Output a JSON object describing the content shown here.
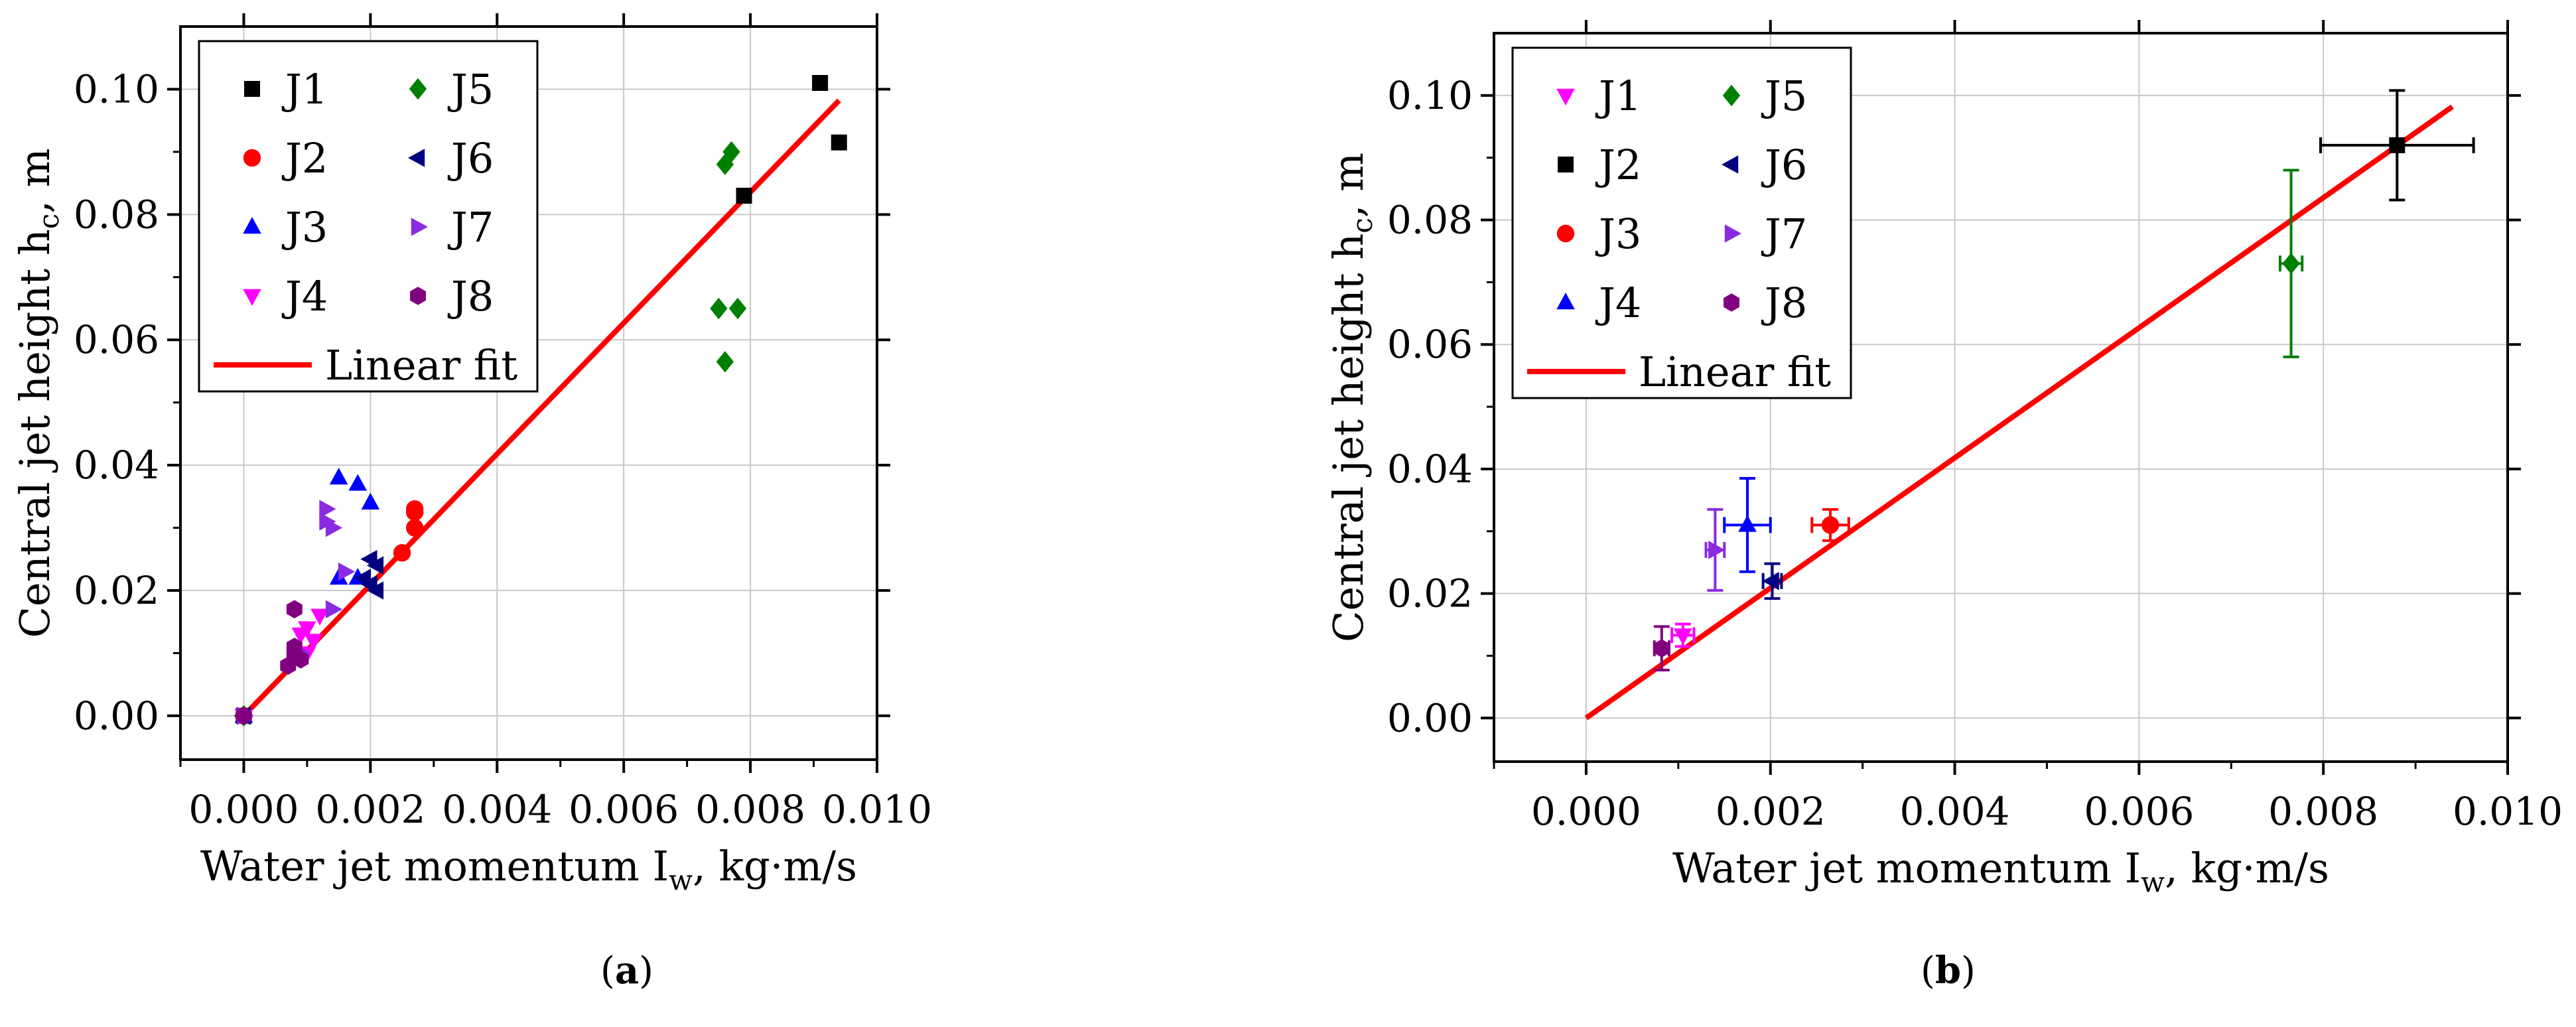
{
  "figure": {
    "captions": [
      {
        "open": "(",
        "letter": "a",
        "close": ")"
      },
      {
        "open": "(",
        "letter": "b",
        "close": ")"
      }
    ]
  },
  "colors": {
    "J1": "#000000",
    "J2": "#ff0000",
    "J3": "#0000ff",
    "J4": "#ff00ff",
    "J5": "#008000",
    "J6": "#000080",
    "J7": "#8a2be2",
    "J8": "#800080",
    "fit": "#ff0000",
    "grid": "#c8c8c8",
    "axis": "#000000"
  },
  "chart_data": [
    {
      "id": "a",
      "type": "scatter",
      "title": "",
      "xlabel_main": "Water jet momentum I",
      "xlabel_sub": "w",
      "xlabel_tail": ", kg·m/s",
      "ylabel_main": "Central jet height h",
      "ylabel_sub": "c",
      "ylabel_tail": ", m",
      "xlim": [
        -0.001,
        0.01
      ],
      "ylim": [
        -0.007,
        0.11
      ],
      "xticks": [
        0.0,
        0.002,
        0.004,
        0.006,
        0.008,
        0.01
      ],
      "yticks": [
        0.0,
        0.02,
        0.04,
        0.06,
        0.08,
        0.1
      ],
      "xtick_labels": [
        "0.000",
        "0.002",
        "0.004",
        "0.006",
        "0.008",
        "0.010"
      ],
      "ytick_labels": [
        "0.00",
        "0.02",
        "0.04",
        "0.06",
        "0.08",
        "0.10"
      ],
      "grid": true,
      "legend_position": "top-left",
      "legend_columns": [
        [
          "J1",
          "J2",
          "J3",
          "J4"
        ],
        [
          "J5",
          "J6",
          "J7",
          "J8"
        ]
      ],
      "fit": {
        "label": "Linear fit",
        "x": [
          0.0,
          0.0094
        ],
        "y": [
          0.0,
          0.0982
        ]
      },
      "series": [
        {
          "name": "J1",
          "marker": "square",
          "x": [
            0.0,
            0.0079,
            0.0091,
            0.0094
          ],
          "y": [
            0.0,
            0.083,
            0.101,
            0.0915
          ]
        },
        {
          "name": "J2",
          "marker": "circle",
          "x": [
            0.0,
            0.0025,
            0.0027,
            0.0027,
            0.0027
          ],
          "y": [
            0.0,
            0.026,
            0.033,
            0.0325,
            0.03
          ]
        },
        {
          "name": "J3",
          "marker": "triangle-up",
          "x": [
            0.0,
            0.0015,
            0.0018,
            0.002,
            0.0015,
            0.0018
          ],
          "y": [
            0.0,
            0.038,
            0.037,
            0.034,
            0.022,
            0.022
          ]
        },
        {
          "name": "J4",
          "marker": "triangle-down",
          "x": [
            0.0,
            0.0009,
            0.001,
            0.0011,
            0.0012,
            0.001
          ],
          "y": [
            0.0,
            0.013,
            0.014,
            0.012,
            0.016,
            0.01
          ]
        },
        {
          "name": "J5",
          "marker": "diamond",
          "x": [
            0.0,
            0.0076,
            0.0077,
            0.0075,
            0.0078,
            0.0076
          ],
          "y": [
            0.0,
            0.088,
            0.09,
            0.065,
            0.065,
            0.0565
          ]
        },
        {
          "name": "J6",
          "marker": "triangle-left",
          "x": [
            0.0,
            0.002,
            0.0021,
            0.0021,
            0.0019,
            0.002
          ],
          "y": [
            0.0,
            0.025,
            0.024,
            0.02,
            0.022,
            0.021
          ]
        },
        {
          "name": "J7",
          "marker": "triangle-right",
          "x": [
            0.0,
            0.0013,
            0.0013,
            0.0014,
            0.0014,
            0.0016,
            0.0009
          ],
          "y": [
            0.0,
            0.033,
            0.031,
            0.03,
            0.017,
            0.023,
            0.01
          ]
        },
        {
          "name": "J8",
          "marker": "hexagon",
          "x": [
            0.0,
            0.0008,
            0.0008,
            0.0009,
            0.0008,
            0.0007
          ],
          "y": [
            0.0,
            0.017,
            0.011,
            0.009,
            0.01,
            0.008
          ]
        }
      ]
    },
    {
      "id": "b",
      "type": "scatter",
      "title": "",
      "xlabel_main": "Water jet momentum I",
      "xlabel_sub": "w",
      "xlabel_tail": ", kg·m/s",
      "ylabel_main": "Central jet height h",
      "ylabel_sub": "c",
      "ylabel_tail": ", m",
      "xlim": [
        -0.001,
        0.01
      ],
      "ylim": [
        -0.007,
        0.11
      ],
      "xticks": [
        0.0,
        0.002,
        0.004,
        0.006,
        0.008,
        0.01
      ],
      "yticks": [
        0.0,
        0.02,
        0.04,
        0.06,
        0.08,
        0.1
      ],
      "xtick_labels": [
        "0.000",
        "0.002",
        "0.004",
        "0.006",
        "0.008",
        "0.010"
      ],
      "ytick_labels": [
        "0.00",
        "0.02",
        "0.04",
        "0.06",
        "0.08",
        "0.10"
      ],
      "grid": true,
      "legend_position": "top-left",
      "legend_columns": [
        [
          "J1",
          "J2",
          "J3",
          "J4"
        ],
        [
          "J5",
          "J6",
          "J7",
          "J8"
        ]
      ],
      "fit": {
        "label": "Linear fit",
        "x": [
          0.0,
          0.0094
        ],
        "y": [
          0.0,
          0.0982
        ]
      },
      "series": [
        {
          "name": "J1",
          "marker": "triangle-down",
          "legend_color": "J4",
          "x": [
            0.00105
          ],
          "y": [
            0.0133
          ],
          "xerr": [
            0.00012
          ],
          "yerr": [
            0.0018
          ]
        },
        {
          "name": "J2",
          "marker": "square",
          "legend_color": "J1",
          "x": [
            0.0088
          ],
          "y": [
            0.092
          ],
          "xerr": [
            0.00083
          ],
          "yerr": [
            0.0088
          ]
        },
        {
          "name": "J3",
          "marker": "circle",
          "legend_color": "J2",
          "x": [
            0.00265
          ],
          "y": [
            0.031
          ],
          "xerr": [
            0.0002
          ],
          "yerr": [
            0.0025
          ]
        },
        {
          "name": "J4",
          "marker": "triangle-up",
          "legend_color": "J3",
          "x": [
            0.00175
          ],
          "y": [
            0.031
          ],
          "xerr": [
            0.00025
          ],
          "yerr": [
            0.0075
          ]
        },
        {
          "name": "J5",
          "marker": "diamond",
          "legend_color": "J5",
          "x": [
            0.00765
          ],
          "y": [
            0.073
          ],
          "xerr": [
            0.00012
          ],
          "yerr": [
            0.015
          ]
        },
        {
          "name": "J6",
          "marker": "triangle-left",
          "legend_color": "J6",
          "x": [
            0.00202
          ],
          "y": [
            0.022
          ],
          "xerr": [
            0.0001
          ],
          "yerr": [
            0.0028
          ]
        },
        {
          "name": "J7",
          "marker": "triangle-right",
          "legend_color": "J7",
          "x": [
            0.0014
          ],
          "y": [
            0.027
          ],
          "xerr": [
            0.0001
          ],
          "yerr": [
            0.0065
          ]
        },
        {
          "name": "J8",
          "marker": "hexagon",
          "legend_color": "J8",
          "x": [
            0.00082
          ],
          "y": [
            0.0112
          ],
          "xerr": [
            8e-05
          ],
          "yerr": [
            0.0035
          ]
        }
      ]
    }
  ]
}
